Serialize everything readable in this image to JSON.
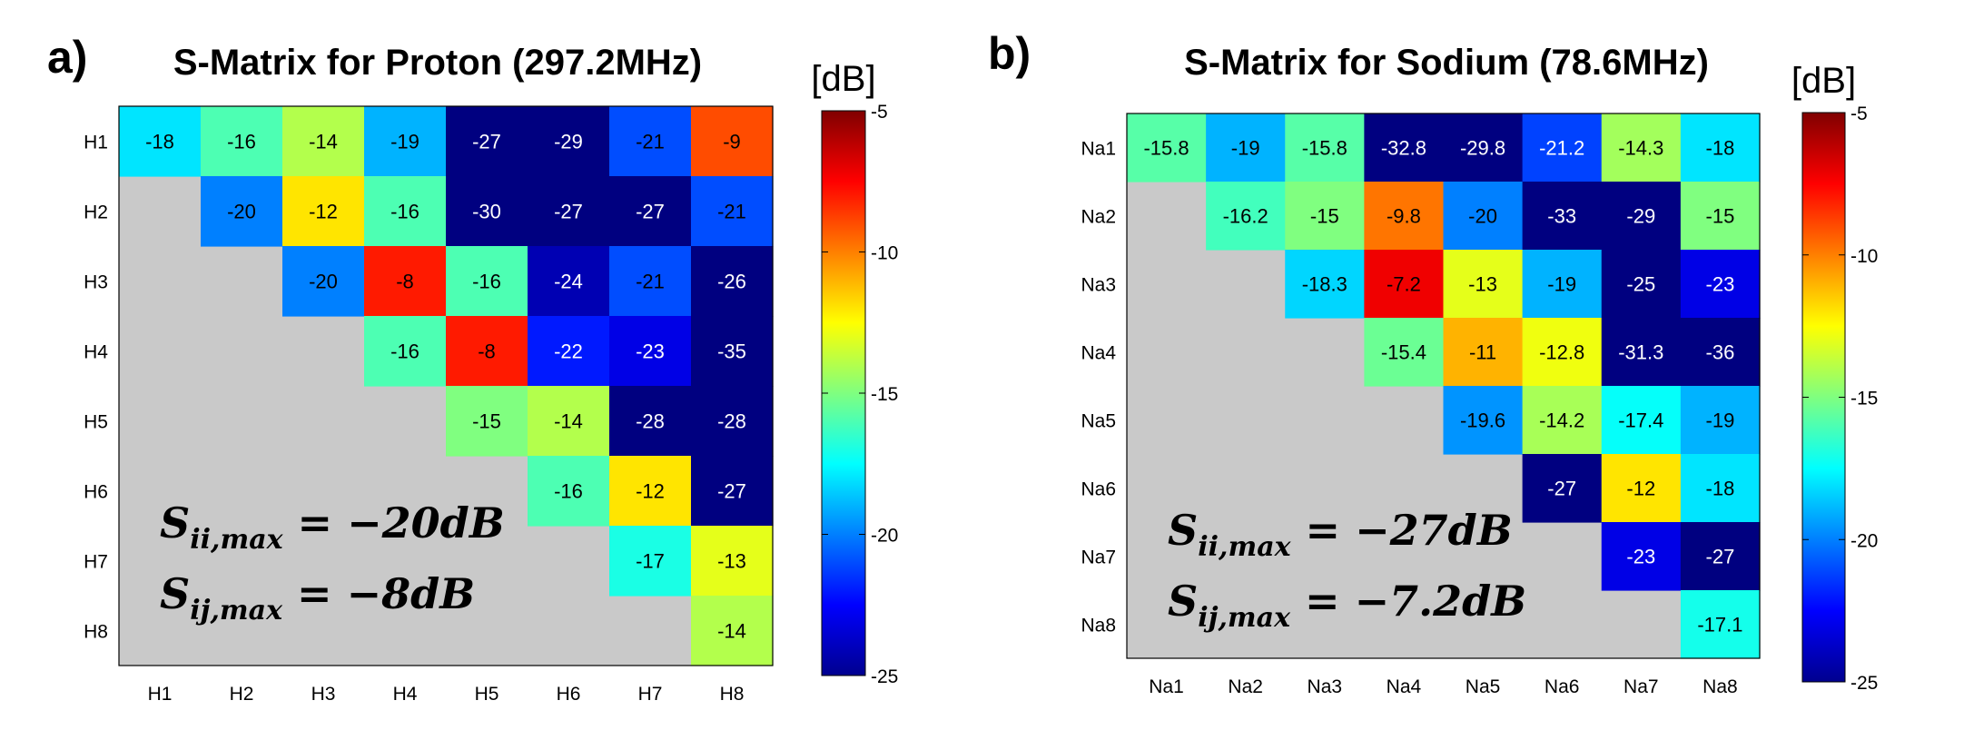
{
  "chart_data": [
    {
      "panel_label": "a)",
      "type": "heatmap",
      "title": "S-Matrix for Proton (297.2MHz)",
      "row_labels": [
        "H1",
        "H2",
        "H3",
        "H4",
        "H5",
        "H6",
        "H7",
        "H8"
      ],
      "col_labels": [
        "H1",
        "H2",
        "H3",
        "H4",
        "H5",
        "H6",
        "H7",
        "H8"
      ],
      "values": [
        [
          -18,
          -16,
          -14,
          -19,
          -27,
          -29,
          -21,
          -9
        ],
        [
          null,
          -20,
          -12,
          -16,
          -30,
          -27,
          -27,
          -21
        ],
        [
          null,
          null,
          -20,
          -8,
          -16,
          -24,
          -21,
          -26
        ],
        [
          null,
          null,
          null,
          -16,
          -8,
          -22,
          -23,
          -35
        ],
        [
          null,
          null,
          null,
          null,
          -15,
          -14,
          -28,
          -28
        ],
        [
          null,
          null,
          null,
          null,
          null,
          -16,
          -12,
          -27
        ],
        [
          null,
          null,
          null,
          null,
          null,
          null,
          -17,
          -13
        ],
        [
          null,
          null,
          null,
          null,
          null,
          null,
          null,
          -14
        ]
      ],
      "colorbar": {
        "label": "[dB]",
        "range": [
          -25,
          -5
        ],
        "ticks": [
          "-5",
          "-10",
          "-15",
          "-20",
          "-25"
        ]
      },
      "annotations": [
        {
          "sym": "S",
          "sub": "ii,max",
          "rhs": " = −20dB"
        },
        {
          "sym": "S",
          "sub": "ij,max",
          "rhs": " = −8dB"
        }
      ]
    },
    {
      "panel_label": "b)",
      "type": "heatmap",
      "title": "S-Matrix for Sodium (78.6MHz)",
      "row_labels": [
        "Na1",
        "Na2",
        "Na3",
        "Na4",
        "Na5",
        "Na6",
        "Na7",
        "Na8"
      ],
      "col_labels": [
        "Na1",
        "Na2",
        "Na3",
        "Na4",
        "Na5",
        "Na6",
        "Na7",
        "Na8"
      ],
      "values": [
        [
          -15.8,
          -19,
          -15.8,
          -32.8,
          -29.8,
          -21.2,
          -14.3,
          -18
        ],
        [
          null,
          -16.2,
          -15,
          -9.8,
          -20,
          -33,
          -29,
          -15
        ],
        [
          null,
          null,
          -18.3,
          -7.2,
          -13,
          -19,
          -25,
          -23
        ],
        [
          null,
          null,
          null,
          -15.4,
          -11,
          -12.8,
          -31.3,
          -36
        ],
        [
          null,
          null,
          null,
          null,
          -19.6,
          -14.2,
          -17.4,
          -19
        ],
        [
          null,
          null,
          null,
          null,
          null,
          -27,
          -12,
          -18
        ],
        [
          null,
          null,
          null,
          null,
          null,
          null,
          -23,
          -27
        ],
        [
          null,
          null,
          null,
          null,
          null,
          null,
          null,
          -17.1
        ]
      ],
      "colorbar": {
        "label": "[dB]",
        "range": [
          -25,
          -5
        ],
        "ticks": [
          "-5",
          "-10",
          "-15",
          "-20",
          "-25"
        ]
      },
      "annotations": [
        {
          "sym": "S",
          "sub": "ii,max",
          "rhs": " = −27dB"
        },
        {
          "sym": "S",
          "sub": "ij,max",
          "rhs": " = −7.2dB"
        }
      ]
    }
  ]
}
